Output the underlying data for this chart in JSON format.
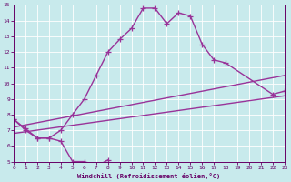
{
  "xlabel": "Windchill (Refroidissement éolien,°C)",
  "xlim": [
    0,
    23
  ],
  "ylim": [
    5,
    15
  ],
  "xticks": [
    0,
    1,
    2,
    3,
    4,
    5,
    6,
    7,
    8,
    9,
    10,
    11,
    12,
    13,
    14,
    15,
    16,
    17,
    18,
    19,
    20,
    21,
    22,
    23
  ],
  "yticks": [
    5,
    6,
    7,
    8,
    9,
    10,
    11,
    12,
    13,
    14,
    15
  ],
  "bg_color": "#c8eaec",
  "grid_color": "#aad4d8",
  "line_color": "#993399",
  "line_width": 1.0,
  "marker": "+",
  "marker_size": 4,
  "line1_x": [
    0,
    1,
    2,
    3,
    4,
    5,
    6,
    7,
    8
  ],
  "line1_y": [
    7.7,
    7.0,
    6.5,
    6.5,
    6.3,
    5.0,
    5.0,
    4.7,
    5.1
  ],
  "line2_x": [
    0,
    1,
    2,
    3,
    4,
    5,
    6,
    7,
    8,
    9,
    10,
    11,
    12,
    13,
    14,
    15,
    16,
    17,
    18,
    19,
    20,
    21,
    22,
    23
  ],
  "line2_y": [
    7.7,
    7.1,
    6.5,
    6.5,
    7.0,
    8.0,
    9.0,
    10.5,
    12.0,
    12.8,
    13.5,
    14.8,
    14.8,
    13.8,
    14.5,
    14.3,
    12.5,
    11.5,
    11.3,
    null,
    null,
    null,
    9.3,
    9.5
  ],
  "line3_x": [
    0,
    23
  ],
  "line3_y": [
    7.2,
    10.5
  ],
  "line4_x": [
    0,
    23
  ],
  "line4_y": [
    6.8,
    9.2
  ]
}
